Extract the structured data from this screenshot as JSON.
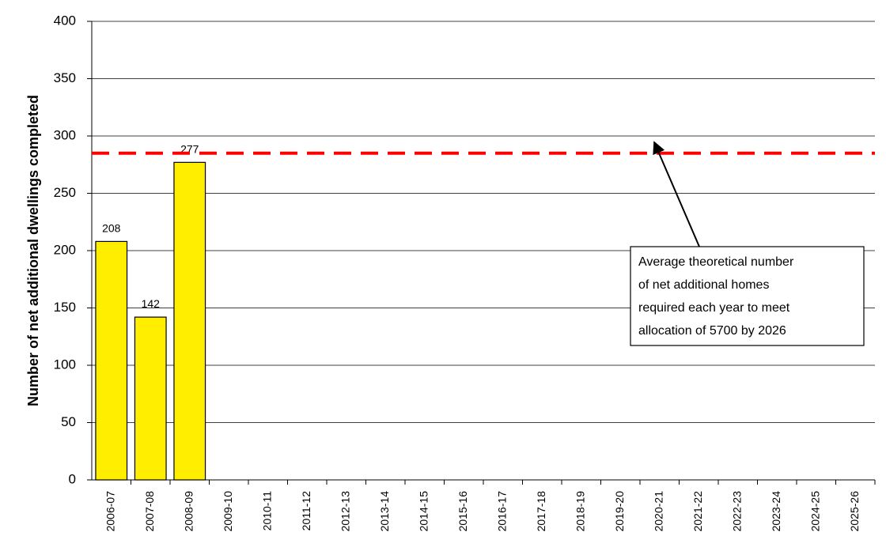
{
  "chart_data": {
    "type": "bar",
    "y_label": "Number of net additional dwellings completed",
    "categories": [
      "2006-07",
      "2007-08",
      "2008-09",
      "2009-10",
      "2010-11",
      "2011-12",
      "2012-13",
      "2013-14",
      "2014-15",
      "2015-16",
      "2016-17",
      "2017-18",
      "2018-19",
      "2019-20",
      "2020-21",
      "2021-22",
      "2022-23",
      "2023-24",
      "2024-25",
      "2025-26"
    ],
    "values": [
      208,
      142,
      277,
      null,
      null,
      null,
      null,
      null,
      null,
      null,
      null,
      null,
      null,
      null,
      null,
      null,
      null,
      null,
      null,
      null
    ],
    "color": "#ffee00",
    "ylim": [
      0,
      400
    ],
    "yticks": [
      0,
      50,
      100,
      150,
      200,
      250,
      300,
      350,
      400
    ],
    "grid": true,
    "reference_line": {
      "value": 285,
      "color": "#ff0000"
    },
    "annotation": [
      "Average theoretical number",
      "of net additional homes",
      "required each year to meet",
      "allocation of 5700 by 2026"
    ]
  }
}
